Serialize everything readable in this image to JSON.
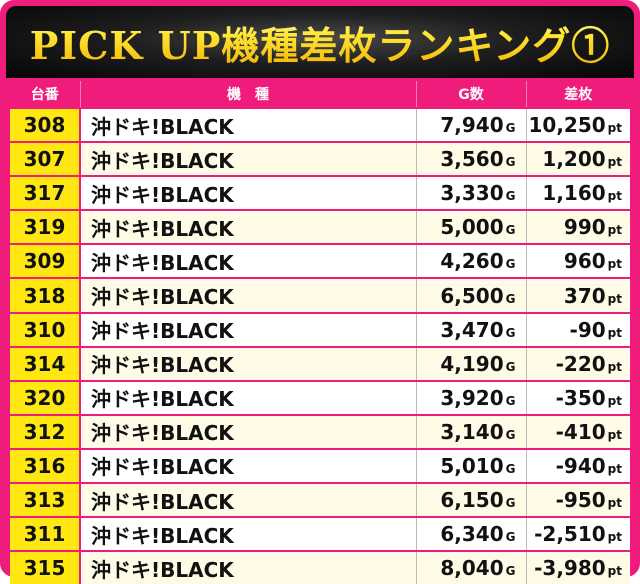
{
  "title": "PICK UP機種差枚ランキング①",
  "columns": {
    "number": "台番",
    "model": "機　種",
    "games": "G数",
    "diff": "差枚"
  },
  "units": {
    "games": "G",
    "diff": "pt"
  },
  "rows": [
    {
      "number": "308",
      "model": "沖ドキ!BLACK",
      "games": "7,940",
      "diff": "10,250"
    },
    {
      "number": "307",
      "model": "沖ドキ!BLACK",
      "games": "3,560",
      "diff": "1,200"
    },
    {
      "number": "317",
      "model": "沖ドキ!BLACK",
      "games": "3,330",
      "diff": "1,160"
    },
    {
      "number": "319",
      "model": "沖ドキ!BLACK",
      "games": "5,000",
      "diff": "990"
    },
    {
      "number": "309",
      "model": "沖ドキ!BLACK",
      "games": "4,260",
      "diff": "960"
    },
    {
      "number": "318",
      "model": "沖ドキ!BLACK",
      "games": "6,500",
      "diff": "370"
    },
    {
      "number": "310",
      "model": "沖ドキ!BLACK",
      "games": "3,470",
      "diff": "-90"
    },
    {
      "number": "314",
      "model": "沖ドキ!BLACK",
      "games": "4,190",
      "diff": "-220"
    },
    {
      "number": "320",
      "model": "沖ドキ!BLACK",
      "games": "3,920",
      "diff": "-350"
    },
    {
      "number": "312",
      "model": "沖ドキ!BLACK",
      "games": "3,140",
      "diff": "-410"
    },
    {
      "number": "316",
      "model": "沖ドキ!BLACK",
      "games": "5,010",
      "diff": "-940"
    },
    {
      "number": "313",
      "model": "沖ドキ!BLACK",
      "games": "6,150",
      "diff": "-950"
    },
    {
      "number": "311",
      "model": "沖ドキ!BLACK",
      "games": "6,340",
      "diff": "-2,510"
    },
    {
      "number": "315",
      "model": "沖ドキ!BLACK",
      "games": "8,040",
      "diff": "-3,980"
    }
  ],
  "colors": {
    "frame": "#f01c7c",
    "number_cell": "#ffe712",
    "title_gold": "#ffe62e",
    "header_bg": "#1e1e1e"
  }
}
